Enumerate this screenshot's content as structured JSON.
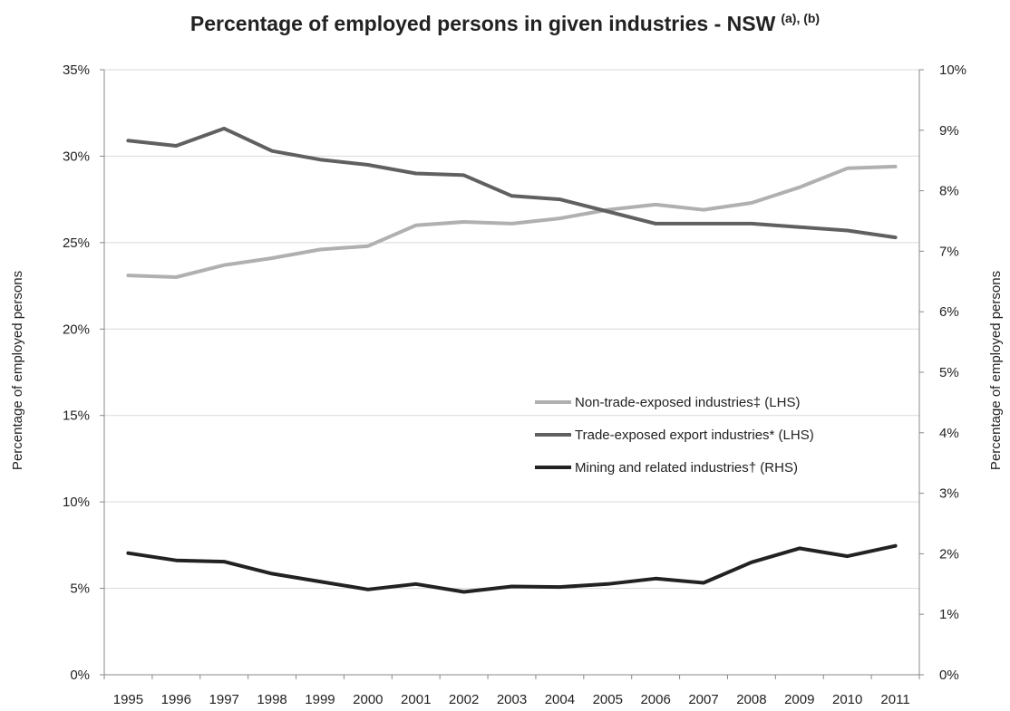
{
  "chart_data": {
    "type": "line",
    "title": "Percentage of employed persons in given industries - NSW",
    "title_superscript": "(a), (b)",
    "ylabel": "Percentage of employed persons",
    "y2label": "Percentage of employed persons",
    "ylim": [
      0,
      35
    ],
    "y2lim": [
      0,
      10
    ],
    "y_ticks": [
      "0%",
      "5%",
      "10%",
      "15%",
      "20%",
      "25%",
      "30%",
      "35%"
    ],
    "y2_ticks": [
      "0%",
      "1%",
      "2%",
      "3%",
      "4%",
      "5%",
      "6%",
      "7%",
      "8%",
      "9%",
      "10%"
    ],
    "x": [
      "1995",
      "1996",
      "1997",
      "1998",
      "1999",
      "2000",
      "2001",
      "2002",
      "2003",
      "2004",
      "2005",
      "2006",
      "2007",
      "2008",
      "2009",
      "2010",
      "2011"
    ],
    "grid": true,
    "legend_position": "center-right",
    "series": [
      {
        "name": "Non-trade-exposed industries‡ (LHS)",
        "axis": "left",
        "color": "#b0b0b0",
        "values": [
          23.1,
          23.0,
          23.7,
          24.1,
          24.6,
          24.8,
          26.0,
          26.2,
          26.1,
          26.4,
          26.9,
          27.2,
          26.9,
          27.3,
          28.2,
          29.3,
          29.4
        ]
      },
      {
        "name": "Trade-exposed export industries* (LHS)",
        "axis": "left",
        "color": "#606060",
        "values": [
          30.9,
          30.6,
          31.6,
          30.3,
          29.8,
          29.5,
          29.0,
          28.9,
          27.7,
          27.5,
          26.8,
          26.1,
          26.1,
          26.1,
          25.9,
          25.7,
          25.3
        ]
      },
      {
        "name": "Mining and related industries† (RHS)",
        "axis": "right",
        "color": "#222222",
        "values": [
          2.01,
          1.89,
          1.87,
          1.67,
          1.54,
          1.41,
          1.5,
          1.37,
          1.46,
          1.45,
          1.5,
          1.59,
          1.52,
          1.86,
          2.09,
          1.96,
          2.13
        ]
      }
    ]
  }
}
